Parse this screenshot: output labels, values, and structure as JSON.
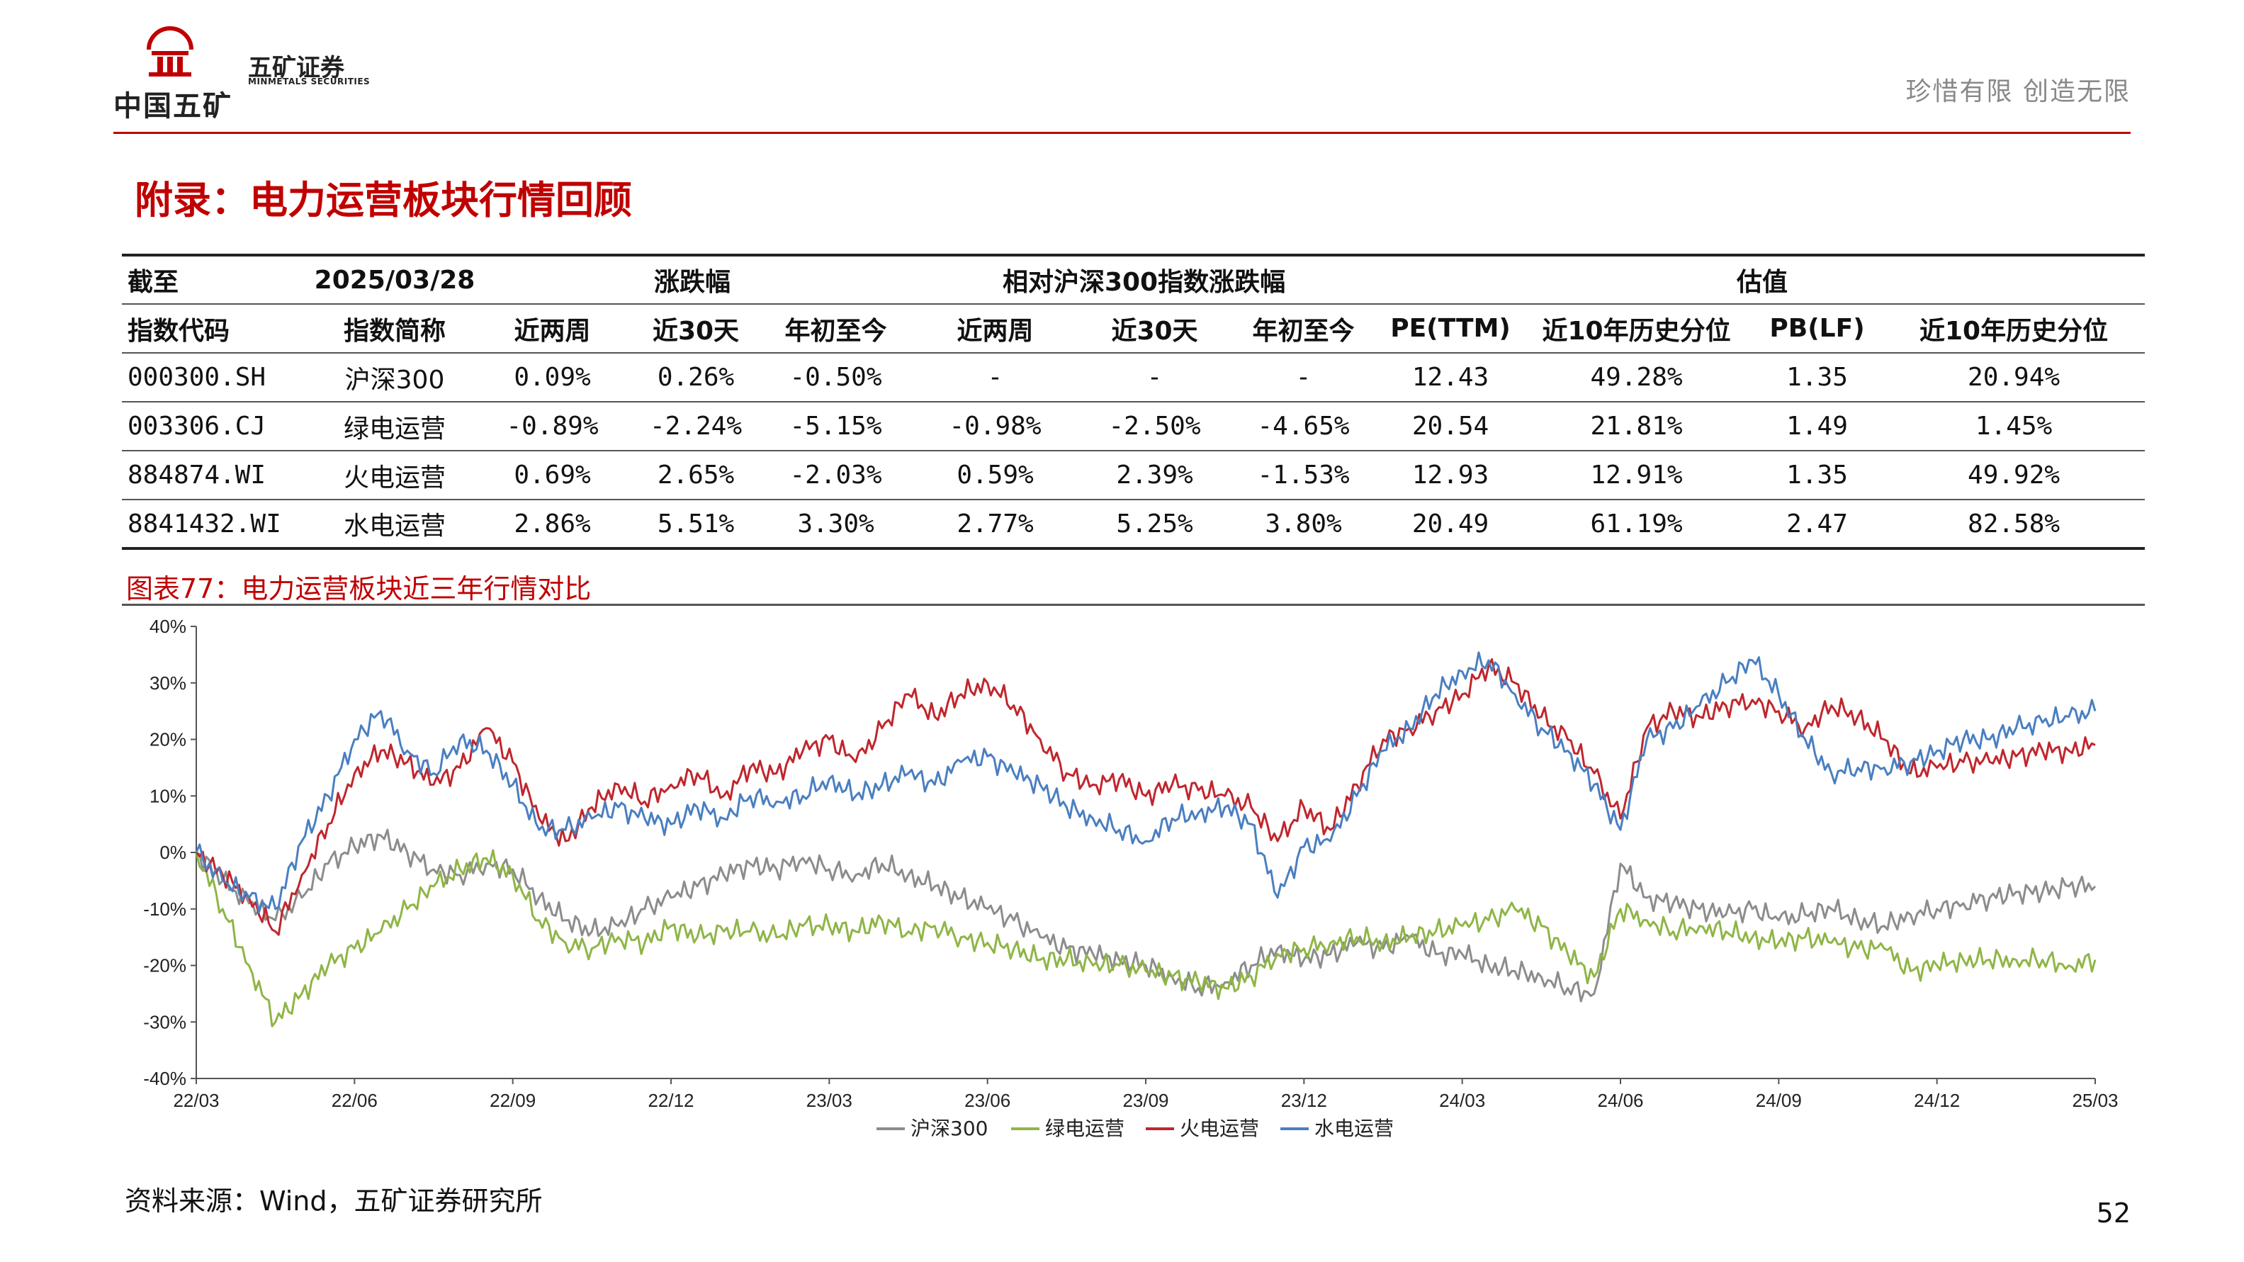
{
  "header": {
    "logo_text": "中国五矿",
    "brand_cn": "五矿证券",
    "brand_en": "MINMETALS SECURITIES",
    "slogan": "珍惜有限  创造无限"
  },
  "page_title": "附录：电力运营板块行情回顾",
  "table": {
    "head1": [
      "截至",
      "2025/03/28",
      "涨跌幅",
      "相对沪深300指数涨跌幅",
      "估值"
    ],
    "head2": [
      "指数代码",
      "指数简称",
      "近两周",
      "近30天",
      "年初至今",
      "近两周",
      "近30天",
      "年初至今",
      "PE(TTM)",
      "近10年历史分位",
      "PB(LF)",
      "近10年历史分位"
    ],
    "rows": [
      [
        "000300.SH",
        "沪深300",
        "0.09%",
        "0.26%",
        "-0.50%",
        "-",
        "-",
        "-",
        "12.43",
        "49.28%",
        "1.35",
        "20.94%"
      ],
      [
        "003306.CJ",
        "绿电运营",
        "-0.89%",
        "-2.24%",
        "-5.15%",
        "-0.98%",
        "-2.50%",
        "-4.65%",
        "20.54",
        "21.81%",
        "1.49",
        "1.45%"
      ],
      [
        "884874.WI",
        "火电运营",
        "0.69%",
        "2.65%",
        "-2.03%",
        "0.59%",
        "2.39%",
        "-1.53%",
        "12.93",
        "12.91%",
        "1.35",
        "49.92%"
      ],
      [
        "8841432.WI",
        "水电运营",
        "2.86%",
        "5.51%",
        "3.30%",
        "2.77%",
        "5.25%",
        "3.80%",
        "20.49",
        "61.19%",
        "2.47",
        "82.58%"
      ]
    ]
  },
  "figure_title": "图表77：电力运营板块近三年行情对比",
  "chart_data": {
    "type": "line",
    "title": "",
    "x_ticks": [
      "22/03",
      "22/06",
      "22/09",
      "22/12",
      "23/03",
      "23/06",
      "23/09",
      "23/12",
      "24/03",
      "24/06",
      "24/09",
      "24/12",
      "25/03"
    ],
    "y_ticks": [
      "40%",
      "30%",
      "20%",
      "10%",
      "0%",
      "-10%",
      "-20%",
      "-30%",
      "-40%"
    ],
    "ylim": [
      -40,
      40
    ],
    "x_index_range": [
      0,
      36
    ],
    "series": [
      {
        "name": "沪深300",
        "color": "#8c8c8c",
        "x": [
          0,
          0.5,
          1,
          1.5,
          2,
          2.5,
          3,
          3.5,
          4,
          4.5,
          5,
          5.5,
          6,
          6.5,
          7,
          7.5,
          8,
          8.5,
          9,
          9.5,
          10,
          10.5,
          11,
          11.5,
          12,
          12.5,
          13,
          13.5,
          14,
          14.5,
          15,
          15.5,
          16,
          16.5,
          17,
          17.5,
          18,
          18.5,
          19,
          19.5,
          20,
          20.5,
          21,
          21.5,
          22,
          22.5,
          23,
          23.5,
          24,
          24.5,
          25,
          25.5,
          26,
          26.5,
          27,
          27.5,
          28,
          28.5,
          29,
          29.5,
          30,
          30.5,
          31,
          31.5,
          32,
          32.5,
          33,
          33.5,
          34,
          34.5,
          35,
          35.5,
          36
        ],
        "values": [
          0,
          -5,
          -9,
          -12,
          -8,
          -2,
          1,
          3,
          0,
          -3,
          -4,
          -2,
          -3,
          -8,
          -12,
          -14,
          -13,
          -10,
          -8,
          -6,
          -4,
          -2,
          -3,
          -1,
          -3,
          -4,
          -2,
          -4,
          -6,
          -8,
          -10,
          -12,
          -15,
          -17,
          -18,
          -19,
          -20,
          -22,
          -24,
          -23,
          -20,
          -17,
          -19,
          -18,
          -16,
          -17,
          -15,
          -18,
          -18,
          -20,
          -21,
          -22,
          -24,
          -25,
          -2,
          -8,
          -9,
          -10,
          -11,
          -10,
          -12,
          -11,
          -10,
          -12,
          -13,
          -11,
          -10,
          -9,
          -8,
          -7,
          -7,
          -6,
          -6
        ]
      },
      {
        "name": "绿电运营",
        "color": "#8fb546",
        "x": [
          0,
          0.5,
          1,
          1.5,
          2,
          2.5,
          3,
          3.5,
          4,
          4.5,
          5,
          5.5,
          6,
          6.5,
          7,
          7.5,
          8,
          8.5,
          9,
          9.5,
          10,
          10.5,
          11,
          11.5,
          12,
          12.5,
          13,
          13.5,
          14,
          14.5,
          15,
          15.5,
          16,
          16.5,
          17,
          17.5,
          18,
          18.5,
          19,
          19.5,
          20,
          20.5,
          21,
          21.5,
          22,
          22.5,
          23,
          23.5,
          24,
          24.5,
          25,
          25.5,
          26,
          26.5,
          27,
          27.5,
          28,
          28.5,
          29,
          29.5,
          30,
          30.5,
          31,
          31.5,
          32,
          32.5,
          33,
          33.5,
          34,
          34.5,
          35,
          35.5,
          36
        ],
        "values": [
          0,
          -10,
          -20,
          -30,
          -25,
          -20,
          -17,
          -14,
          -10,
          -6,
          -3,
          -1,
          -4,
          -12,
          -16,
          -17,
          -15,
          -16,
          -13,
          -15,
          -14,
          -14,
          -15,
          -13,
          -13,
          -14,
          -12,
          -14,
          -13,
          -15,
          -16,
          -17,
          -19,
          -19,
          -20,
          -20,
          -21,
          -22,
          -23,
          -24,
          -22,
          -18,
          -17,
          -16,
          -15,
          -16,
          -15,
          -14,
          -13,
          -12,
          -10,
          -13,
          -18,
          -22,
          -10,
          -12,
          -14,
          -13,
          -14,
          -15,
          -16,
          -15,
          -16,
          -17,
          -17,
          -21,
          -20,
          -19,
          -19,
          -19,
          -19,
          -20,
          -19
        ]
      },
      {
        "name": "火电运营",
        "color": "#c0262d",
        "x": [
          0,
          0.5,
          1,
          1.5,
          2,
          2.5,
          3,
          3.5,
          4,
          4.5,
          5,
          5.5,
          6,
          6.5,
          7,
          7.5,
          8,
          8.5,
          9,
          9.5,
          10,
          10.5,
          11,
          11.5,
          12,
          12.5,
          13,
          13.5,
          14,
          14.5,
          15,
          15.5,
          16,
          16.5,
          17,
          17.5,
          18,
          18.5,
          19,
          19.5,
          20,
          20.5,
          21,
          21.5,
          22,
          22.5,
          23,
          23.5,
          24,
          24.5,
          25,
          25.5,
          26,
          26.5,
          27,
          27.5,
          28,
          28.5,
          29,
          29.5,
          30,
          30.5,
          31,
          31.5,
          32,
          32.5,
          33,
          33.5,
          34,
          34.5,
          35,
          35.5,
          36
        ],
        "values": [
          0,
          -4,
          -8,
          -14,
          -4,
          5,
          14,
          18,
          16,
          12,
          15,
          22,
          16,
          6,
          2,
          8,
          12,
          9,
          12,
          14,
          10,
          15,
          14,
          18,
          20,
          16,
          22,
          28,
          24,
          28,
          30,
          26,
          20,
          14,
          12,
          13,
          10,
          12,
          11,
          10,
          8,
          2,
          8,
          4,
          12,
          20,
          22,
          25,
          28,
          33,
          30,
          24,
          20,
          14,
          6,
          22,
          25,
          24,
          26,
          27,
          25,
          22,
          26,
          24,
          20,
          14,
          15,
          16,
          16,
          17,
          18,
          18,
          19
        ]
      },
      {
        "name": "水电运营",
        "color": "#4a7fc1",
        "x": [
          0,
          0.5,
          1,
          1.5,
          2,
          2.5,
          3,
          3.5,
          4,
          4.5,
          5,
          5.5,
          6,
          6.5,
          7,
          7.5,
          8,
          8.5,
          9,
          9.5,
          10,
          10.5,
          11,
          11.5,
          12,
          12.5,
          13,
          13.5,
          14,
          14.5,
          15,
          15.5,
          16,
          16.5,
          17,
          17.5,
          18,
          18.5,
          19,
          19.5,
          20,
          20.5,
          21,
          21.5,
          22,
          22.5,
          23,
          23.5,
          24,
          24.5,
          25,
          25.5,
          26,
          26.5,
          27,
          27.5,
          28,
          28.5,
          29,
          29.5,
          30,
          30.5,
          31,
          31.5,
          32,
          32.5,
          33,
          33.5,
          34,
          34.5,
          35,
          35.5,
          36
        ],
        "values": [
          0,
          -5,
          -8,
          -10,
          2,
          10,
          20,
          25,
          18,
          14,
          20,
          18,
          12,
          4,
          4,
          6,
          8,
          6,
          5,
          8,
          6,
          10,
          9,
          10,
          13,
          10,
          12,
          14,
          12,
          16,
          17,
          14,
          12,
          8,
          6,
          4,
          2,
          6,
          7,
          8,
          5,
          -8,
          1,
          2,
          10,
          18,
          22,
          28,
          32,
          34,
          28,
          22,
          18,
          12,
          4,
          20,
          22,
          26,
          30,
          34,
          28,
          20,
          14,
          15,
          15,
          16,
          18,
          20,
          20,
          22,
          23,
          24,
          25
        ]
      }
    ],
    "legend": [
      "沪深300",
      "绿电运营",
      "火电运营",
      "水电运营"
    ],
    "legend_position": "bottom-center"
  },
  "source": "资料来源：Wind，五矿证券研究所",
  "page_number": "52"
}
